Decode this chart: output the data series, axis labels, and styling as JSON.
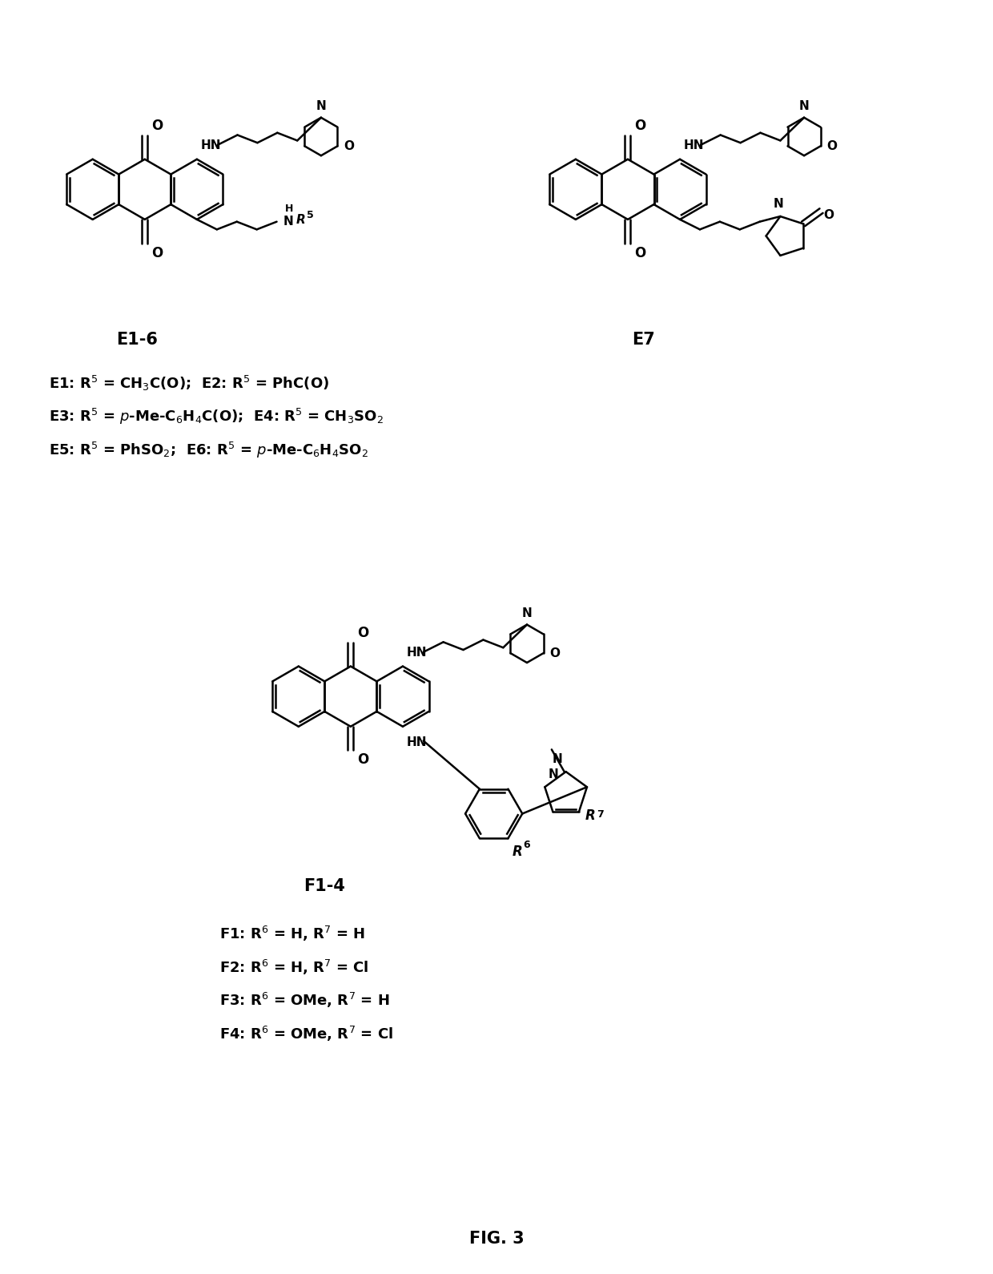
{
  "title": "FIG. 3",
  "background_color": "#ffffff",
  "text_color": "#000000",
  "line_color": "#000000",
  "fig_width": 12.4,
  "fig_height": 15.9,
  "label_E16": "E1-6",
  "label_E7": "E7",
  "label_F14": "F1-4",
  "label_fig": "FIG. 3",
  "text_E_lines": [
    "E1: R$^{5}$ = CH$_{3}$C(O);  E2: R$^{5}$ = PhC(O)",
    "E3: R$^{5}$ = $p$-Me-C$_{6}$H$_{4}$C(O);  E4: R$^{5}$ = CH$_{3}$SO$_{2}$",
    "E5: R$^{5}$ = PhSO$_{2}$;  E6: R$^{5}$ = $p$-Me-C$_{6}$H$_{4}$SO$_{2}$"
  ],
  "text_F_lines": [
    "F1: R$^{6}$ = H, R$^{7}$ = H",
    "F2: R$^{6}$ = H, R$^{7}$ = Cl",
    "F3: R$^{6}$ = OMe, R$^{7}$ = H",
    "F4: R$^{6}$ = OMe, R$^{7}$ = Cl"
  ]
}
